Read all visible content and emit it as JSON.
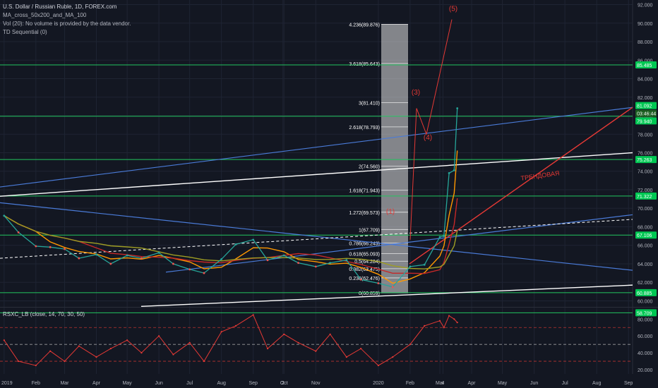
{
  "header": {
    "symbol_line": "U.S. Dollar / Russian Ruble, 1D, FOREX.com",
    "indicator_1": "MA_cross_50x200_and_MA_100",
    "indicator_2": "Vol (20): No volume is provided by the data vendor.",
    "indicator_3": "TD Sequential (0)"
  },
  "rsi_label": "RSXC_LB (close, 14, 70, 30, 50)",
  "colors": {
    "background": "#131722",
    "grid": "#1f2433",
    "horizontal_level": "#22c55e",
    "trend_blue": "#4a7bd8",
    "trend_white": "#ffffff",
    "wave_red": "#e53935",
    "fib_box": "#e0e0e0",
    "price_tag": "#00c853",
    "rsi_line": "#e53935"
  },
  "chart_data": [
    {
      "type": "line",
      "panel": "price",
      "title": "U.S. Dollar / Russian Ruble, 1D, FOREX.com",
      "ylim": [
        59.5,
        92.5
      ],
      "y_ticks": [
        "92.000",
        "90.000",
        "88.000",
        "86.000",
        "84.000",
        "82.000",
        "80.000",
        "78.000",
        "76.000",
        "74.000",
        "72.000",
        "70.000",
        "68.000",
        "66.000",
        "64.000",
        "62.000",
        "60.000"
      ],
      "x_ticks": [
        "2019",
        "Feb",
        "Mar",
        "Apr",
        "May",
        "Jun",
        "Jul",
        "Aug",
        "Sep",
        "2",
        "Oct",
        "Nov",
        "2020",
        "Feb",
        "Mar",
        "4",
        "Apr",
        "May",
        "Jun",
        "Jul",
        "Aug",
        "Sep"
      ],
      "price_tags": [
        "85.485",
        "81.092",
        "03:46:44",
        "79.940",
        "75.263",
        "71.322",
        "67.106",
        "60.885",
        "58.709"
      ],
      "horizontal_levels": [
        85.485,
        79.94,
        75.263,
        71.322,
        67.106,
        60.885,
        58.709
      ],
      "fibonacci_labels": [
        "4.236(89.876)",
        "3.618(85.643)",
        "3(81.410)",
        "2.618(78.793)",
        "2(74.560)",
        "1.618(71.943)",
        "1.272(69.573)",
        "1(67.709)",
        "0.786(66.243)",
        "0.618(65.093)",
        "0.5(64.284)",
        "0.382(63.475)",
        "0.236(62.476)",
        "0(60.859)"
      ],
      "fibonacci_levels": [
        89.876,
        85.643,
        81.41,
        78.793,
        74.56,
        71.943,
        69.573,
        67.709,
        66.243,
        65.093,
        64.284,
        63.475,
        62.476,
        60.859
      ],
      "wave_labels": [
        "(1)",
        "(3)",
        "(4)",
        "(5)"
      ],
      "annotation": "ТРЕНДОВАЯ",
      "price_series": {
        "x": [
          "2019-01-01",
          "2019-01-15",
          "2019-02-01",
          "2019-02-15",
          "2019-03-01",
          "2019-03-15",
          "2019-04-01",
          "2019-04-15",
          "2019-05-01",
          "2019-05-15",
          "2019-06-01",
          "2019-06-15",
          "2019-07-01",
          "2019-07-15",
          "2019-08-01",
          "2019-08-15",
          "2019-09-01",
          "2019-09-15",
          "2019-10-01",
          "2019-10-15",
          "2019-11-01",
          "2019-11-15",
          "2019-12-01",
          "2019-12-15",
          "2020-01-01",
          "2020-01-15",
          "2020-02-01",
          "2020-02-15",
          "2020-03-01",
          "2020-03-05",
          "2020-03-10",
          "2020-03-15",
          "2020-03-18"
        ],
        "close": [
          69.2,
          67.4,
          65.9,
          65.8,
          65.6,
          64.6,
          65.0,
          64.0,
          64.9,
          64.6,
          65.2,
          64.0,
          63.4,
          63.0,
          64.5,
          66.1,
          66.6,
          64.4,
          64.9,
          64.1,
          63.7,
          64.1,
          64.4,
          62.3,
          61.9,
          61.5,
          63.7,
          63.9,
          66.9,
          67.0,
          73.8,
          74.1,
          80.8
        ]
      }
    },
    {
      "type": "line",
      "panel": "oscillator",
      "title": "RSXC_LB (close, 14, 70, 30, 50)",
      "ylim": [
        15,
        92
      ],
      "y_ticks": [
        "80.000",
        "60.000",
        "40.000",
        "20.000"
      ],
      "reference_levels": [
        70,
        50,
        30
      ],
      "series": {
        "x": [
          "2019-01-01",
          "2019-01-15",
          "2019-02-01",
          "2019-02-15",
          "2019-03-01",
          "2019-03-15",
          "2019-04-01",
          "2019-04-15",
          "2019-05-01",
          "2019-05-15",
          "2019-06-01",
          "2019-06-15",
          "2019-07-01",
          "2019-07-15",
          "2019-08-01",
          "2019-08-15",
          "2019-09-01",
          "2019-09-15",
          "2019-10-01",
          "2019-10-15",
          "2019-11-01",
          "2019-11-15",
          "2019-12-01",
          "2019-12-15",
          "2020-01-01",
          "2020-01-15",
          "2020-02-01",
          "2020-02-15",
          "2020-03-01",
          "2020-03-05",
          "2020-03-10",
          "2020-03-15",
          "2020-03-18"
        ],
        "values": [
          55,
          30,
          25,
          42,
          30,
          48,
          35,
          45,
          55,
          40,
          60,
          38,
          52,
          30,
          65,
          72,
          85,
          45,
          62,
          52,
          42,
          62,
          35,
          45,
          25,
          35,
          50,
          72,
          78,
          70,
          84,
          80,
          76
        ]
      }
    }
  ]
}
